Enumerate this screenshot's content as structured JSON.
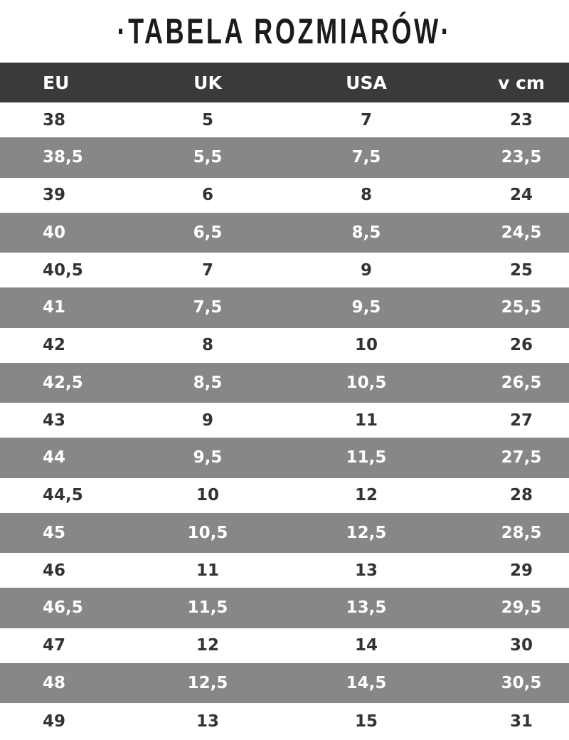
{
  "title": "·TABELA ROZMIARÓW·",
  "colors": {
    "header_bg": "#3a3a3a",
    "stripe_bg": "#878787",
    "text_dark": "#333333"
  },
  "table": {
    "headers": [
      "EU",
      "UK",
      "USA",
      "v cm"
    ],
    "rows": [
      [
        "38",
        "5",
        "7",
        "23"
      ],
      [
        "38,5",
        "5,5",
        "7,5",
        "23,5"
      ],
      [
        "39",
        "6",
        "8",
        "24"
      ],
      [
        "40",
        "6,5",
        "8,5",
        "24,5"
      ],
      [
        "40,5",
        "7",
        "9",
        "25"
      ],
      [
        "41",
        "7,5",
        "9,5",
        "25,5"
      ],
      [
        "42",
        "8",
        "10",
        "26"
      ],
      [
        "42,5",
        "8,5",
        "10,5",
        "26,5"
      ],
      [
        "43",
        "9",
        "11",
        "27"
      ],
      [
        "44",
        "9,5",
        "11,5",
        "27,5"
      ],
      [
        "44,5",
        "10",
        "12",
        "28"
      ],
      [
        "45",
        "10,5",
        "12,5",
        "28,5"
      ],
      [
        "46",
        "11",
        "13",
        "29"
      ],
      [
        "46,5",
        "11,5",
        "13,5",
        "29,5"
      ],
      [
        "47",
        "12",
        "14",
        "30"
      ],
      [
        "48",
        "12,5",
        "14,5",
        "30,5"
      ],
      [
        "49",
        "13",
        "15",
        "31"
      ]
    ]
  }
}
